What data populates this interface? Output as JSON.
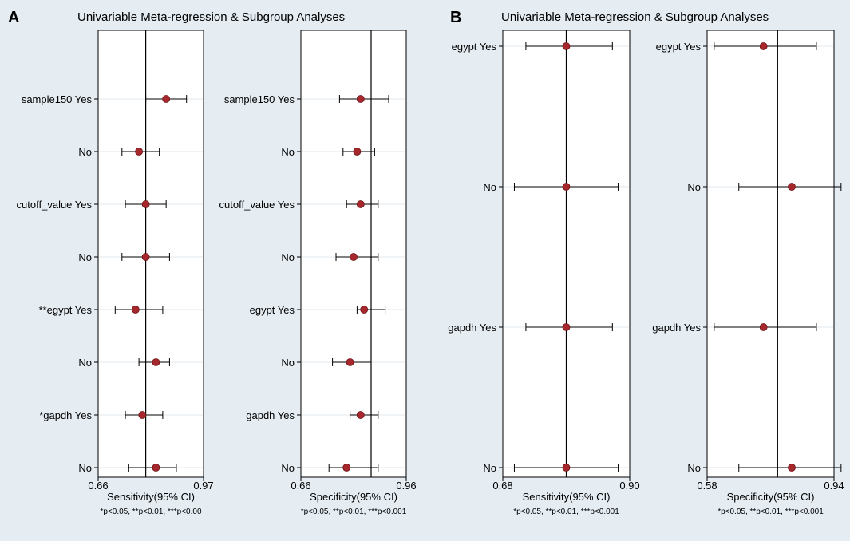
{
  "figure": {
    "background": "#e5edf3",
    "plot_bg": "#ffffff",
    "point_color": "#a6282c",
    "line_color": "#000000",
    "grid_color": "#e3e8ec"
  },
  "panels": [
    {
      "letter": "A",
      "title": "Univariable Meta-regression & Subgroup Analyses"
    },
    {
      "letter": "B",
      "title": "Univariable Meta-regression & Subgroup Analyses"
    }
  ],
  "chart_data": [
    {
      "type": "forest",
      "panel": "A",
      "categories": [
        "sample150 Yes",
        "No",
        "cutoff_value Yes",
        "No",
        "**egypt Yes",
        "No",
        "*gapdh Yes",
        "No"
      ],
      "estimate": [
        0.86,
        0.78,
        0.8,
        0.8,
        0.77,
        0.83,
        0.79,
        0.83
      ],
      "lower": [
        0.8,
        0.73,
        0.74,
        0.73,
        0.71,
        0.78,
        0.74,
        0.75
      ],
      "upper": [
        0.92,
        0.84,
        0.86,
        0.87,
        0.85,
        0.87,
        0.85,
        0.89
      ],
      "pooled": 0.8,
      "xlim": [
        0.66,
        0.97
      ],
      "xticks": [
        "0.66",
        "0.97"
      ],
      "xlabel": "Sensitivity(95% CI)",
      "note": "*p<0.05, **p<0.01, ***p<0.00"
    },
    {
      "type": "forest",
      "panel": "A",
      "categories": [
        "sample150 Yes",
        "No",
        "cutoff_value Yes",
        "No",
        "egypt Yes",
        "No",
        "gapdh Yes",
        "No"
      ],
      "estimate": [
        0.83,
        0.82,
        0.83,
        0.81,
        0.84,
        0.8,
        0.83,
        0.79
      ],
      "lower": [
        0.77,
        0.78,
        0.79,
        0.76,
        0.82,
        0.75,
        0.8,
        0.74
      ],
      "upper": [
        0.91,
        0.87,
        0.88,
        0.88,
        0.9,
        0.86,
        0.88,
        0.88
      ],
      "pooled": 0.86,
      "xlim": [
        0.66,
        0.96
      ],
      "xticks": [
        "0.66",
        "0.96"
      ],
      "xlabel": "Specificity(95% CI)",
      "note": "*p<0.05, **p<0.01, ***p<0.001"
    },
    {
      "type": "forest",
      "panel": "B",
      "categories": [
        "egypt Yes",
        "No",
        "gapdh Yes",
        "No"
      ],
      "estimate": [
        0.79,
        0.79,
        0.79,
        0.79
      ],
      "lower": [
        0.72,
        0.7,
        0.72,
        0.7
      ],
      "upper": [
        0.87,
        0.88,
        0.87,
        0.88
      ],
      "pooled": 0.79,
      "xlim": [
        0.68,
        0.9
      ],
      "xticks": [
        "0.68",
        "0.90"
      ],
      "xlabel": "Sensitivity(95% CI)",
      "note": "*p<0.05, **p<0.01, ***p<0.001"
    },
    {
      "type": "forest",
      "panel": "B",
      "categories": [
        "egypt Yes",
        "No",
        "gapdh Yes",
        "No"
      ],
      "estimate": [
        0.74,
        0.82,
        0.74,
        0.82
      ],
      "lower": [
        0.6,
        0.67,
        0.6,
        0.67
      ],
      "upper": [
        0.89,
        0.96,
        0.89,
        0.96
      ],
      "pooled": 0.78,
      "xlim": [
        0.58,
        0.94
      ],
      "xticks": [
        "0.58",
        "0.94"
      ],
      "xlabel": "Specificity(95% CI)",
      "note": "*p<0.05, **p<0.01, ***p<0.001"
    }
  ]
}
